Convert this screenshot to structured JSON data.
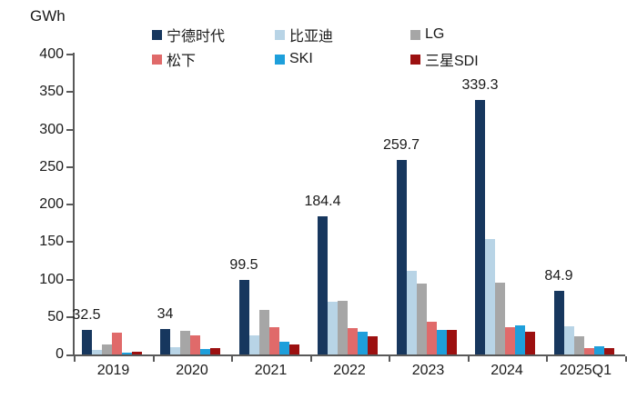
{
  "chart_data": {
    "type": "bar",
    "title": "",
    "ylabel": "GWh",
    "xlabel": "",
    "ylim": [
      0,
      400
    ],
    "y_ticks": [
      0,
      50,
      100,
      150,
      200,
      250,
      300,
      350,
      400
    ],
    "grid": false,
    "legend_position": "top",
    "axis_color": "#595959",
    "categories": [
      "2019",
      "2020",
      "2021",
      "2022",
      "2023",
      "2024",
      "2025Q1"
    ],
    "series": [
      {
        "name": "宁德时代",
        "slug": "catl",
        "color": "#17375e",
        "values": [
          32.5,
          34,
          99.5,
          184.4,
          259.7,
          339.3,
          84.9
        ]
      },
      {
        "name": "比亚迪",
        "slug": "byd",
        "color": "#b8d4e6",
        "values": [
          6,
          10,
          26,
          70,
          111,
          154,
          37
        ]
      },
      {
        "name": "LG",
        "slug": "lg",
        "color": "#a6a6a6",
        "values": [
          13,
          31,
          59,
          71,
          95,
          96,
          24
        ]
      },
      {
        "name": "松下",
        "slug": "panasonic",
        "color": "#e06a6a",
        "values": [
          28.5,
          26,
          36,
          35,
          44,
          36,
          8.5
        ]
      },
      {
        "name": "SKI",
        "slug": "ski",
        "color": "#1e9fdb",
        "values": [
          2,
          7,
          17,
          30,
          33,
          39,
          11
        ]
      },
      {
        "name": "三星SDI",
        "slug": "samsung-sdi",
        "color": "#9c1010",
        "values": [
          3.5,
          8,
          13,
          24,
          33,
          30,
          8.5
        ]
      }
    ],
    "bar_labels": [
      "32.5",
      "34",
      "99.5",
      "184.4",
      "259.7",
      "339.3",
      "84.9"
    ],
    "bar_label_series": "宁德时代"
  }
}
